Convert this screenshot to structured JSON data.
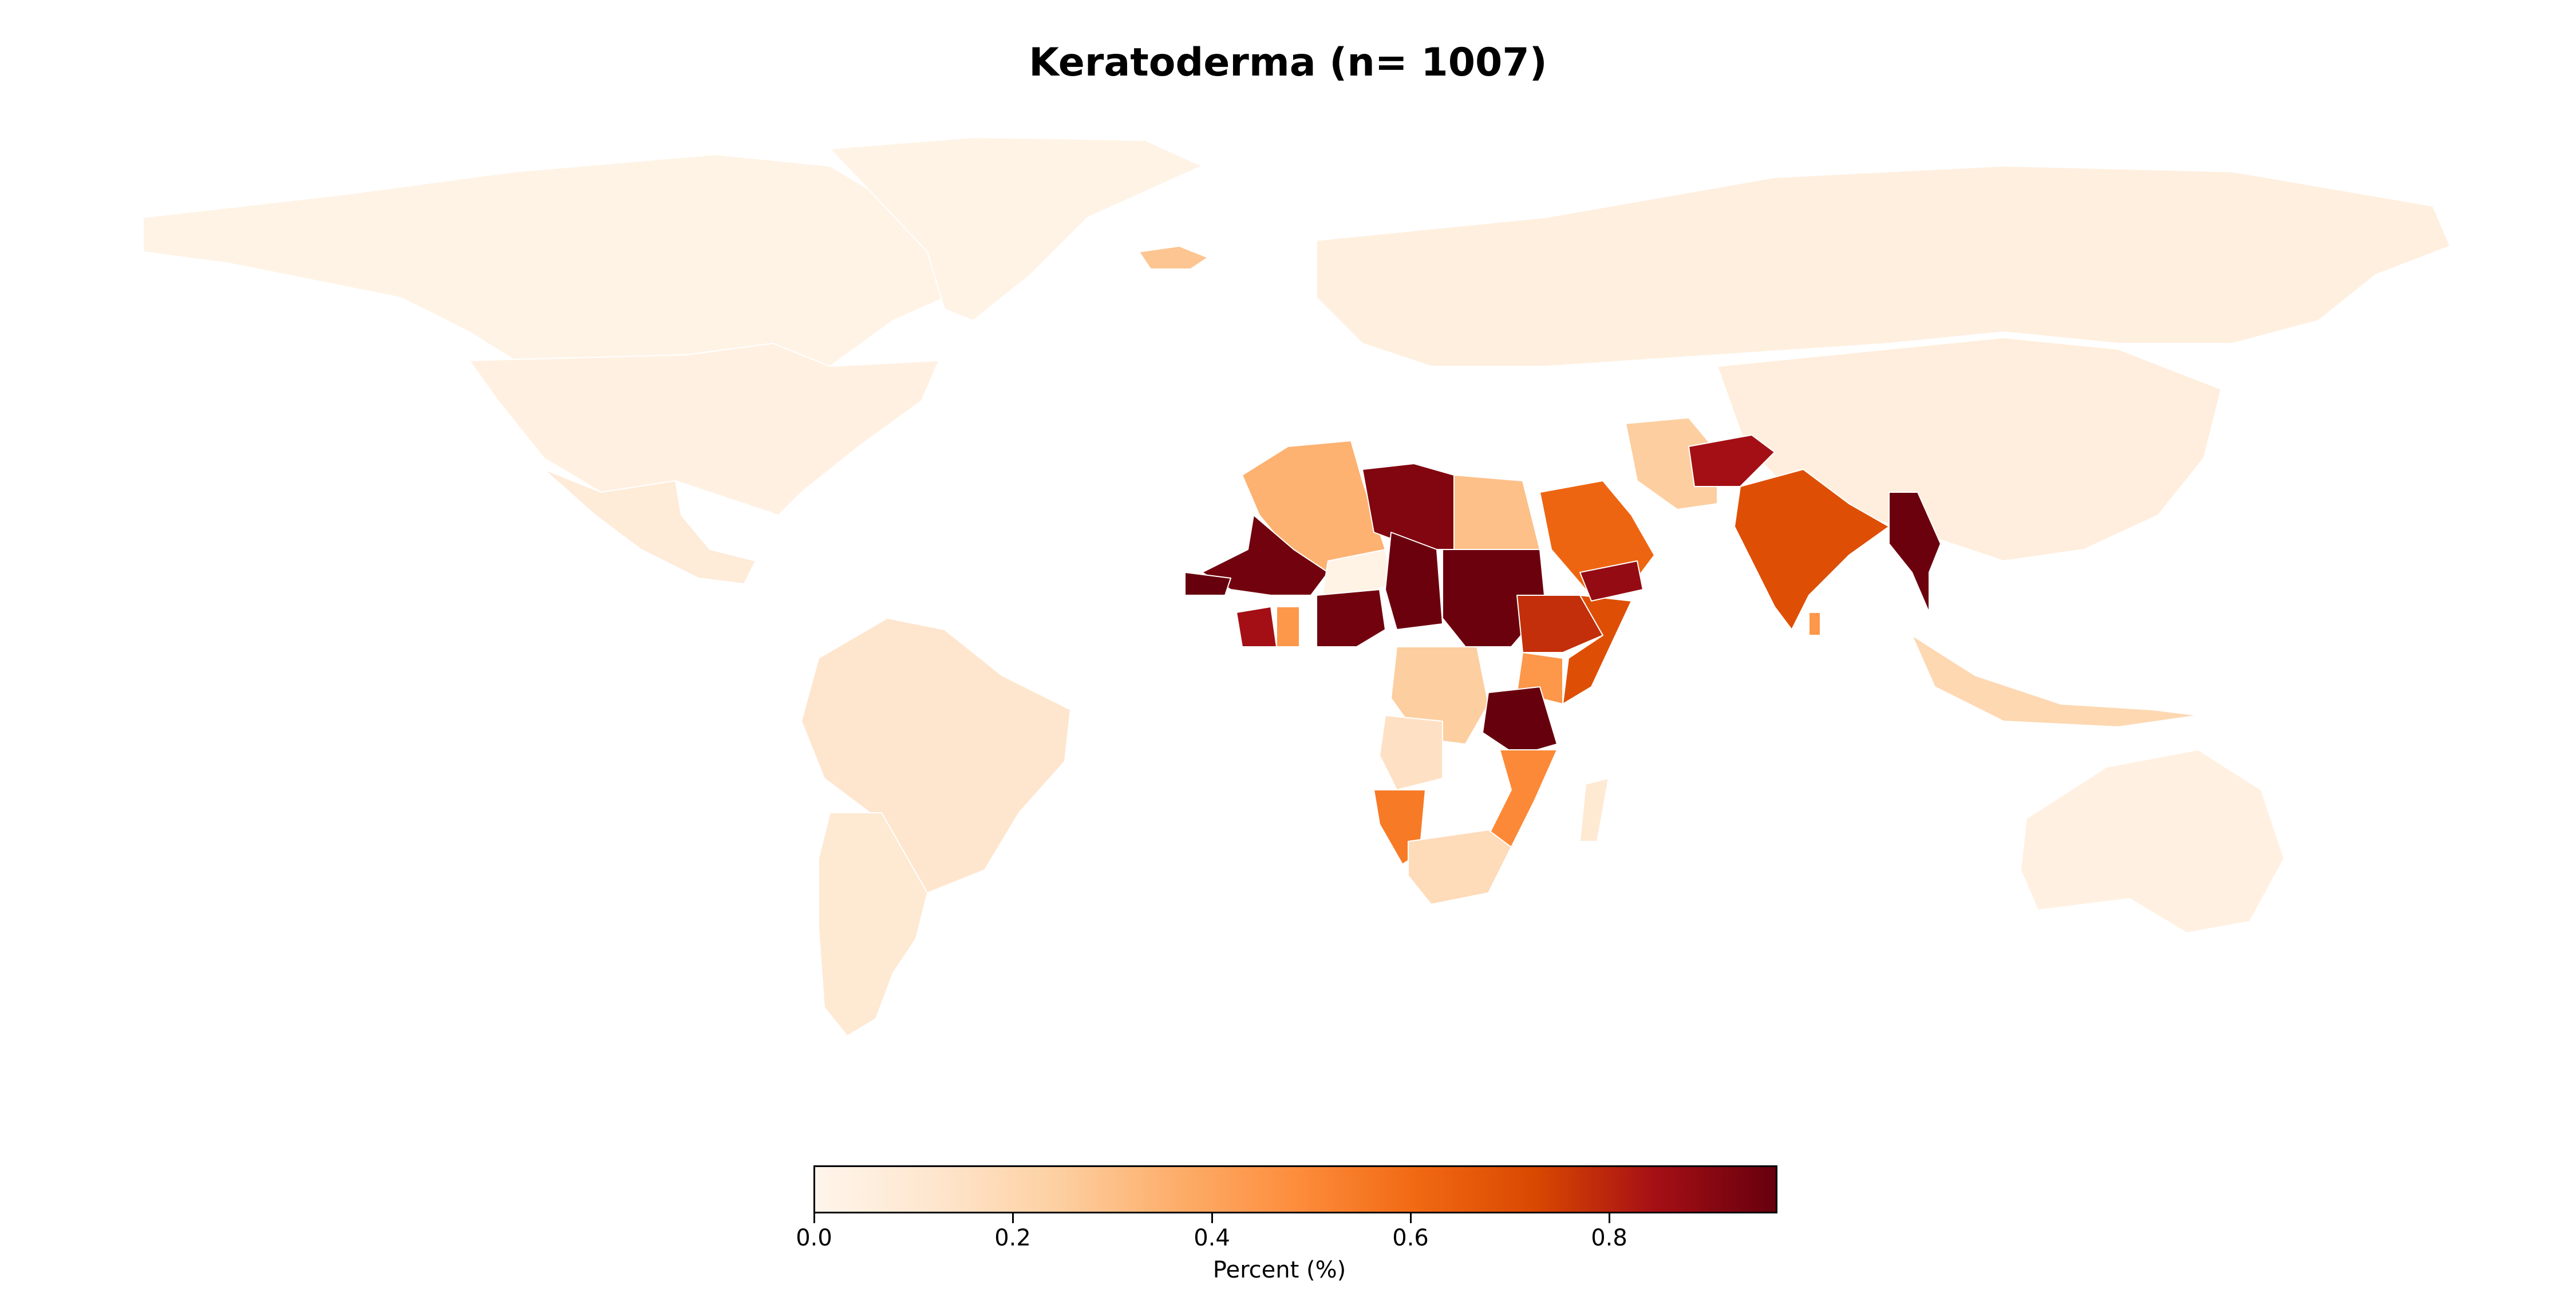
{
  "title": "Keratoderma (n= 1007)",
  "colorbar": {
    "label": "Percent (%)",
    "min": 0.0,
    "max": 0.97,
    "colormap": "OrRd-style (white → orange → dark red)",
    "ticks": [
      {
        "value": 0.0,
        "label": "0.0"
      },
      {
        "value": 0.2,
        "label": "0.2"
      },
      {
        "value": 0.4,
        "label": "0.4"
      },
      {
        "value": 0.6,
        "label": "0.6"
      },
      {
        "value": 0.8,
        "label": "0.8"
      }
    ]
  },
  "map_data": {
    "type": "choropleth",
    "region_values": [
      {
        "region": "Canada",
        "value": 0.02
      },
      {
        "region": "United States",
        "value": 0.04
      },
      {
        "region": "Greenland",
        "value": 0.02
      },
      {
        "region": "Mexico",
        "value": 0.08
      },
      {
        "region": "Brazil",
        "value": 0.12
      },
      {
        "region": "Argentina",
        "value": 0.1
      },
      {
        "region": "Russia",
        "value": 0.05
      },
      {
        "region": "China",
        "value": 0.06
      },
      {
        "region": "Australia",
        "value": 0.04
      },
      {
        "region": "Iceland",
        "value": 0.28
      },
      {
        "region": "Algeria",
        "value": 0.35
      },
      {
        "region": "Libya",
        "value": 0.92
      },
      {
        "region": "Egypt",
        "value": 0.3
      },
      {
        "region": "Mali",
        "value": 0.95
      },
      {
        "region": "Niger",
        "value": 0.02
      },
      {
        "region": "Chad",
        "value": 0.96
      },
      {
        "region": "Sudan",
        "value": 0.96
      },
      {
        "region": "Nigeria",
        "value": 0.95
      },
      {
        "region": "Ethiopia",
        "value": 0.78
      },
      {
        "region": "Somalia",
        "value": 0.7
      },
      {
        "region": "Kenya",
        "value": 0.45
      },
      {
        "region": "Tanzania",
        "value": 0.97
      },
      {
        "region": "DR Congo",
        "value": 0.25
      },
      {
        "region": "Angola",
        "value": 0.15
      },
      {
        "region": "Namibia",
        "value": 0.55
      },
      {
        "region": "South Africa",
        "value": 0.18
      },
      {
        "region": "Mozambique",
        "value": 0.5
      },
      {
        "region": "Madagascar",
        "value": 0.1
      },
      {
        "region": "Saudi Arabia",
        "value": 0.62
      },
      {
        "region": "Yemen",
        "value": 0.88
      },
      {
        "region": "Iran",
        "value": 0.25
      },
      {
        "region": "Afghanistan",
        "value": 0.85
      },
      {
        "region": "India",
        "value": 0.7
      },
      {
        "region": "Myanmar",
        "value": 0.96
      },
      {
        "region": "Indonesia",
        "value": 0.2
      },
      {
        "region": "Senegal",
        "value": 0.97
      },
      {
        "region": "Ghana",
        "value": 0.45
      },
      {
        "region": "Côte d'Ivoire",
        "value": 0.85
      },
      {
        "region": "Sri Lanka",
        "value": 0.45
      }
    ]
  },
  "colors": {
    "background": "#ffffff",
    "missing": "#cccccc"
  }
}
